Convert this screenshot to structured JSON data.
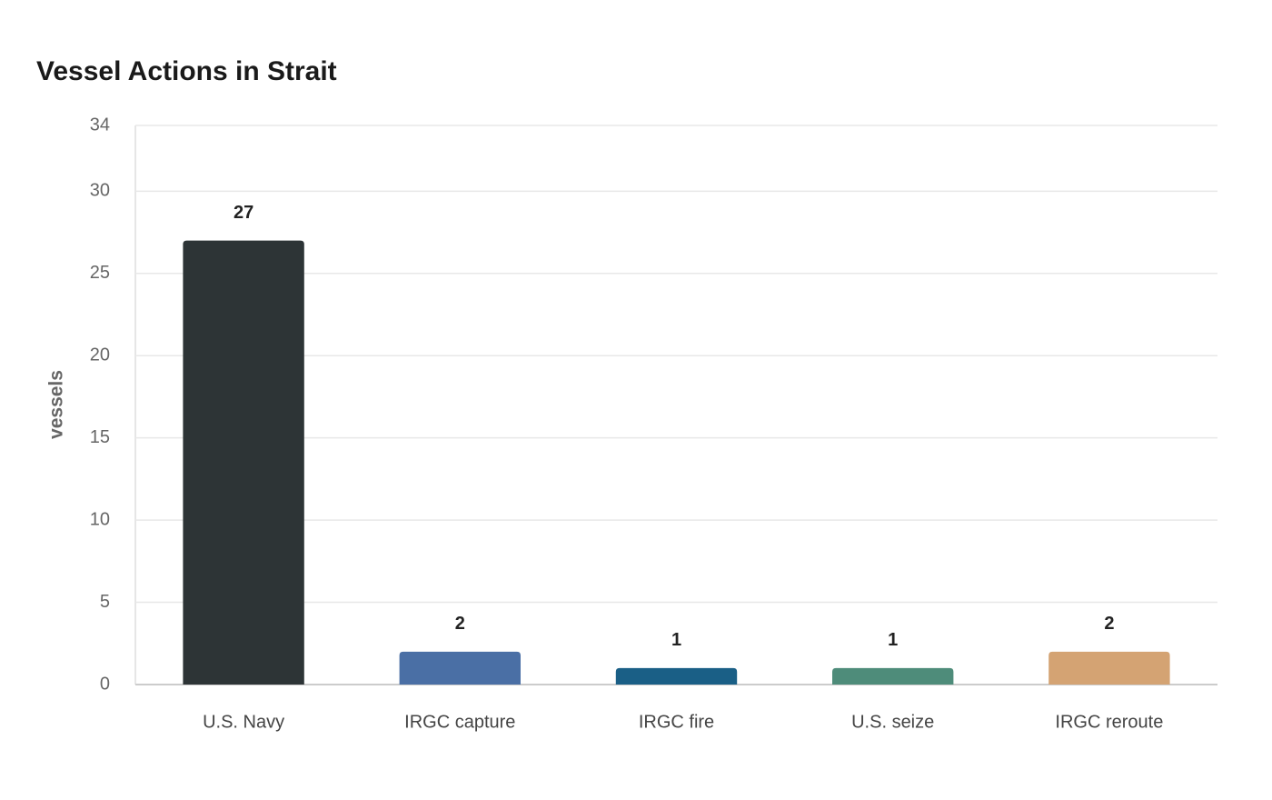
{
  "chart_data": {
    "type": "bar",
    "title": "Vessel Actions in Strait",
    "y_label": "vessels",
    "categories": [
      "U.S. Navy",
      "IRGC capture",
      "IRGC fire",
      "U.S. seize",
      "IRGC reroute"
    ],
    "values": [
      27,
      2,
      1,
      1,
      2
    ],
    "colors": [
      "#2d3436",
      "#4a6fa5",
      "#1a5f86",
      "#4e8c7a",
      "#d4a373"
    ],
    "ylim": [
      0,
      34
    ],
    "yticks": [
      0,
      5,
      10,
      15,
      20,
      25,
      30,
      34
    ],
    "grid": true
  }
}
